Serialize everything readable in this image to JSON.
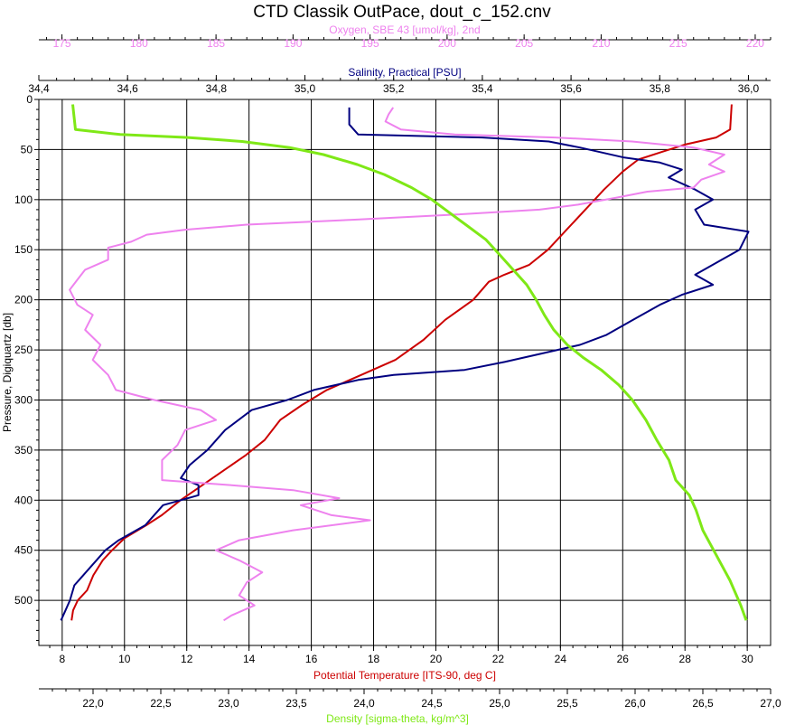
{
  "chart_data": {
    "type": "line",
    "title": "CTD Classik OutPace, dout_c_152.cnv",
    "y_axis": {
      "label": "Pressure, Digiquartz [db]",
      "range": [
        0,
        545
      ],
      "ticks": [
        0,
        50,
        100,
        150,
        200,
        250,
        300,
        350,
        400,
        450,
        500
      ],
      "inverted": true
    },
    "x_axes": [
      {
        "id": "oxygen",
        "label": "Oxygen, SBE 43 [umol/kg], 2nd",
        "position": "top-outer",
        "color": "#ee82ee",
        "range": [
          173.5,
          221
        ],
        "ticks": [
          175,
          180,
          185,
          190,
          195,
          200,
          205,
          210,
          215,
          220
        ],
        "tick_labels": [
          "175",
          "180",
          "185",
          "190",
          "195",
          "200",
          "205",
          "210",
          "215",
          "220"
        ]
      },
      {
        "id": "salinity",
        "label": "Salinity, Practical [PSU]",
        "position": "top-inner",
        "color": "#000080",
        "range": [
          34.4,
          36.05
        ],
        "ticks": [
          34.4,
          34.6,
          34.8,
          35.0,
          35.2,
          35.4,
          35.6,
          35.8,
          36.0
        ],
        "tick_labels": [
          "34,4",
          "34,6",
          "34,8",
          "35,0",
          "35,2",
          "35,4",
          "35,6",
          "35,8",
          "36,0"
        ]
      },
      {
        "id": "temperature",
        "label": "Potential Temperature [ITS-90, deg C]",
        "position": "bottom-inner",
        "color": "#cc0000",
        "range": [
          7.25,
          30.75
        ],
        "ticks": [
          8,
          10,
          12,
          14,
          16,
          18,
          20,
          22,
          24,
          26,
          28,
          30
        ],
        "tick_labels": [
          "8",
          "10",
          "12",
          "14",
          "16",
          "18",
          "20",
          "22",
          "24",
          "26",
          "28",
          "30"
        ]
      },
      {
        "id": "density",
        "label": "Density [sigma-theta, kg/m^3]",
        "position": "bottom-outer",
        "color": "#7fe817",
        "range": [
          21.6,
          27.0
        ],
        "ticks": [
          22.0,
          22.5,
          23.0,
          23.5,
          24.0,
          24.5,
          25.0,
          25.5,
          26.0,
          26.5,
          27.0
        ],
        "tick_labels": [
          "22,0",
          "22,5",
          "23,0",
          "23,5",
          "24,0",
          "24,5",
          "25,0",
          "25,5",
          "26,0",
          "26,5",
          "27,0"
        ]
      }
    ],
    "grid": true,
    "series": [
      {
        "axis": "temperature",
        "color": "#cc0000",
        "points": [
          [
            29.5,
            5
          ],
          [
            29.45,
            30
          ],
          [
            29.0,
            38
          ],
          [
            28.0,
            45
          ],
          [
            27.3,
            52
          ],
          [
            26.5,
            60
          ],
          [
            26.0,
            72
          ],
          [
            25.4,
            90
          ],
          [
            24.8,
            110
          ],
          [
            24.2,
            130
          ],
          [
            23.6,
            150
          ],
          [
            23.0,
            165
          ],
          [
            22.2,
            175
          ],
          [
            21.7,
            182
          ],
          [
            21.2,
            200
          ],
          [
            20.3,
            220
          ],
          [
            19.6,
            240
          ],
          [
            18.7,
            260
          ],
          [
            17.6,
            275
          ],
          [
            16.5,
            290
          ],
          [
            15.7,
            305
          ],
          [
            15.0,
            320
          ],
          [
            14.5,
            340
          ],
          [
            13.9,
            355
          ],
          [
            13.2,
            370
          ],
          [
            12.5,
            385
          ],
          [
            11.8,
            400
          ],
          [
            11.2,
            415
          ],
          [
            10.7,
            425
          ],
          [
            10.0,
            438
          ],
          [
            9.6,
            450
          ],
          [
            9.3,
            460
          ],
          [
            9.0,
            475
          ],
          [
            8.8,
            490
          ],
          [
            8.5,
            500
          ],
          [
            8.35,
            510
          ],
          [
            8.3,
            520
          ]
        ]
      },
      {
        "axis": "salinity",
        "color": "#000080",
        "points": [
          [
            35.1,
            8
          ],
          [
            35.1,
            25
          ],
          [
            35.12,
            35
          ],
          [
            35.4,
            38
          ],
          [
            35.55,
            42
          ],
          [
            35.62,
            48
          ],
          [
            35.72,
            58
          ],
          [
            35.8,
            63
          ],
          [
            35.85,
            70
          ],
          [
            35.82,
            78
          ],
          [
            35.88,
            90
          ],
          [
            35.92,
            100
          ],
          [
            35.88,
            110
          ],
          [
            35.9,
            125
          ],
          [
            36.0,
            132
          ],
          [
            35.98,
            150
          ],
          [
            35.94,
            160
          ],
          [
            35.88,
            175
          ],
          [
            35.92,
            185
          ],
          [
            35.85,
            195
          ],
          [
            35.8,
            205
          ],
          [
            35.74,
            220
          ],
          [
            35.68,
            235
          ],
          [
            35.62,
            245
          ],
          [
            35.52,
            255
          ],
          [
            35.45,
            262
          ],
          [
            35.36,
            270
          ],
          [
            35.2,
            275
          ],
          [
            35.12,
            280
          ],
          [
            35.02,
            290
          ],
          [
            34.96,
            300
          ],
          [
            34.88,
            310
          ],
          [
            34.82,
            330
          ],
          [
            34.78,
            350
          ],
          [
            34.74,
            365
          ],
          [
            34.72,
            378
          ],
          [
            34.76,
            385
          ],
          [
            34.76,
            395
          ],
          [
            34.68,
            405
          ],
          [
            34.66,
            415
          ],
          [
            34.64,
            425
          ],
          [
            34.58,
            440
          ],
          [
            34.55,
            450
          ],
          [
            34.53,
            460
          ],
          [
            34.5,
            475
          ],
          [
            34.48,
            485
          ],
          [
            34.47,
            500
          ],
          [
            34.46,
            510
          ],
          [
            34.45,
            520
          ]
        ]
      },
      {
        "axis": "oxygen",
        "color": "#ee82ee",
        "points": [
          [
            196.5,
            8
          ],
          [
            196.2,
            15
          ],
          [
            196.0,
            22
          ],
          [
            197.0,
            30
          ],
          [
            200.5,
            35
          ],
          [
            207.0,
            38
          ],
          [
            212.0,
            42
          ],
          [
            216.0,
            48
          ],
          [
            218.0,
            55
          ],
          [
            217.0,
            65
          ],
          [
            218.0,
            72
          ],
          [
            216.5,
            80
          ],
          [
            216.0,
            88
          ],
          [
            213.0,
            92
          ],
          [
            211.0,
            98
          ],
          [
            208.5,
            105
          ],
          [
            206.0,
            110
          ],
          [
            200.5,
            115
          ],
          [
            194.0,
            120
          ],
          [
            187.0,
            125
          ],
          [
            183.0,
            130
          ],
          [
            180.5,
            135
          ],
          [
            179.5,
            142
          ],
          [
            178.0,
            148
          ],
          [
            178.0,
            160
          ],
          [
            176.5,
            170
          ],
          [
            176.0,
            180
          ],
          [
            175.5,
            190
          ],
          [
            176.0,
            205
          ],
          [
            177.0,
            215
          ],
          [
            176.5,
            230
          ],
          [
            177.5,
            245
          ],
          [
            177.0,
            260
          ],
          [
            178.0,
            275
          ],
          [
            178.5,
            290
          ],
          [
            181.0,
            300
          ],
          [
            184.0,
            310
          ],
          [
            185.0,
            320
          ],
          [
            183.0,
            330
          ],
          [
            182.5,
            345
          ],
          [
            181.5,
            360
          ],
          [
            181.5,
            380
          ],
          [
            186.0,
            385
          ],
          [
            190.0,
            390
          ],
          [
            193.0,
            398
          ],
          [
            190.5,
            405
          ],
          [
            192.5,
            415
          ],
          [
            195.0,
            420
          ],
          [
            190.0,
            430
          ],
          [
            186.5,
            440
          ],
          [
            185.0,
            450
          ],
          [
            186.5,
            460
          ],
          [
            188.0,
            472
          ],
          [
            187.0,
            482
          ],
          [
            186.5,
            495
          ],
          [
            187.5,
            505
          ],
          [
            186.0,
            515
          ],
          [
            185.5,
            520
          ]
        ]
      },
      {
        "axis": "density",
        "color": "#7fe817",
        "points": [
          [
            21.85,
            5
          ],
          [
            21.87,
            30
          ],
          [
            22.2,
            35
          ],
          [
            22.7,
            38
          ],
          [
            23.1,
            42
          ],
          [
            23.45,
            48
          ],
          [
            23.7,
            55
          ],
          [
            23.95,
            65
          ],
          [
            24.15,
            75
          ],
          [
            24.35,
            88
          ],
          [
            24.5,
            100
          ],
          [
            24.6,
            110
          ],
          [
            24.75,
            125
          ],
          [
            24.9,
            140
          ],
          [
            25.0,
            155
          ],
          [
            25.1,
            170
          ],
          [
            25.2,
            185
          ],
          [
            25.27,
            200
          ],
          [
            25.33,
            215
          ],
          [
            25.4,
            230
          ],
          [
            25.5,
            245
          ],
          [
            25.62,
            258
          ],
          [
            25.75,
            270
          ],
          [
            25.88,
            285
          ],
          [
            25.98,
            300
          ],
          [
            26.08,
            320
          ],
          [
            26.16,
            340
          ],
          [
            26.25,
            360
          ],
          [
            26.3,
            380
          ],
          [
            26.4,
            395
          ],
          [
            26.45,
            410
          ],
          [
            26.5,
            430
          ],
          [
            26.6,
            455
          ],
          [
            26.7,
            480
          ],
          [
            26.78,
            505
          ],
          [
            26.82,
            520
          ]
        ]
      }
    ]
  }
}
